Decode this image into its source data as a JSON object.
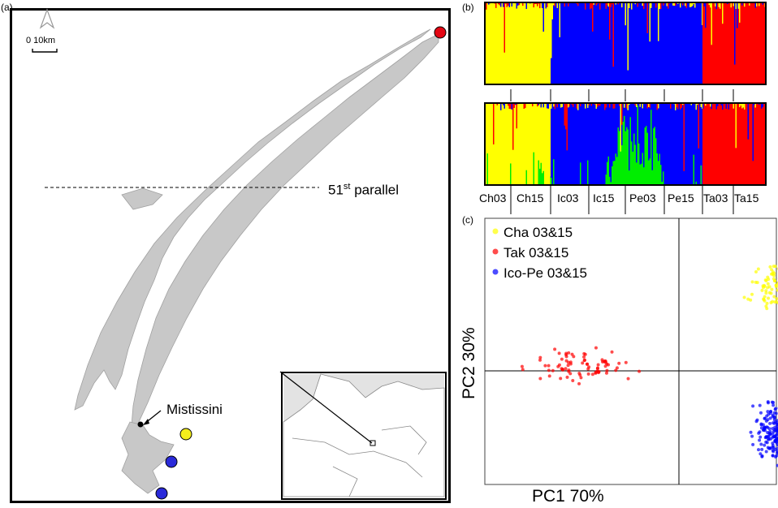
{
  "panels": {
    "a": {
      "label": "(a)"
    },
    "b": {
      "label": "(b)"
    },
    "c": {
      "label": "(c)"
    }
  },
  "map": {
    "scale_label": "0 10km",
    "north_icon": "north-arrow-icon",
    "parallel_label_main": "51",
    "parallel_label_sup": "st",
    "parallel_label_rest": " parallel",
    "town_label": "Mistissini",
    "site_colors": [
      "#e30613",
      "#f5ef1c",
      "#2a2ad9",
      "#2a2ad9"
    ]
  },
  "structure_plot": {
    "colors": {
      "cluster1": "#ffff00",
      "cluster2": "#0000ff",
      "cluster3": "#ff0000",
      "cluster4": "#00ee00"
    },
    "population_labels": [
      "Ch03",
      "Ch15",
      "Ic03",
      "Ic15",
      "Pe03",
      "Pe15",
      "Ta03",
      "Ta15"
    ]
  },
  "chart_data": {
    "type": "scatter",
    "xlabel": "PC1 70%",
    "ylabel": "PC2 30%",
    "series": [
      {
        "name": "Cha 03&15",
        "color": "#ffff00",
        "center": [
          0.75,
          0.55
        ],
        "n": 110
      },
      {
        "name": "Tak 03&15",
        "color": "#ff0000",
        "center": [
          -0.75,
          0.05
        ],
        "n": 80
      },
      {
        "name": "Ico-Pe 03&15",
        "color": "#0000ff",
        "center": [
          0.75,
          -0.4
        ],
        "n": 230
      }
    ],
    "legend_position": "top-left",
    "grid": false
  }
}
